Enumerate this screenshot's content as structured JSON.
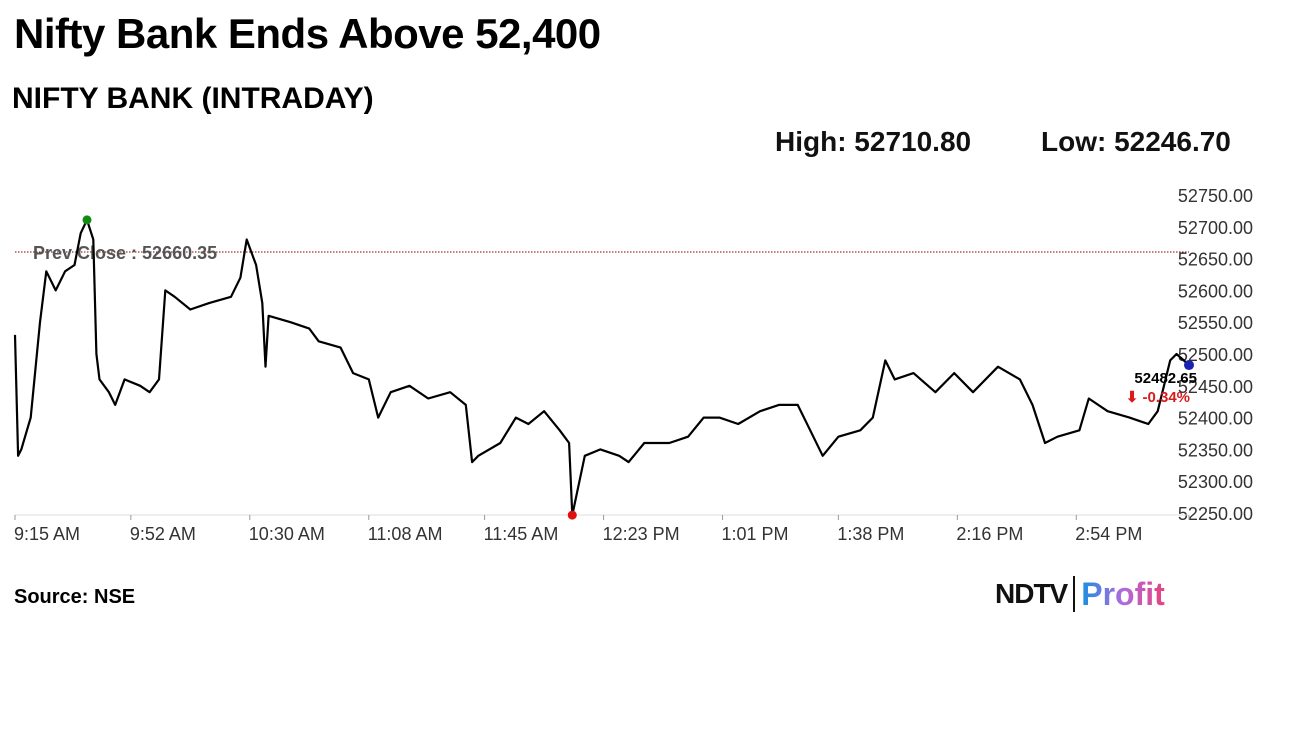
{
  "header": {
    "title": "Nifty Bank Ends Above 52,400",
    "subtitle": "NIFTY BANK (INTRADAY)",
    "high_label": "High: 52710.80",
    "low_label": "Low: 52246.70"
  },
  "footer": {
    "source": "Source: NSE",
    "logo_text": "NDTV | Profit"
  },
  "chart_data": {
    "type": "line",
    "title": "NIFTY BANK (INTRADAY)",
    "xlim": [
      "9:15",
      "15:30"
    ],
    "ylim": [
      52250,
      52750
    ],
    "y_ticks": [
      "52250.00",
      "52300.00",
      "52350.00",
      "52400.00",
      "52450.00",
      "52500.00",
      "52550.00",
      "52600.00",
      "52650.00",
      "52700.00",
      "52750.00"
    ],
    "x_ticks": [
      {
        "t": "9:15",
        "label": "9:15 AM"
      },
      {
        "t": "9:52",
        "label": "9:52 AM"
      },
      {
        "t": "10:30",
        "label": "10:30 AM"
      },
      {
        "t": "11:08",
        "label": "11:08 AM"
      },
      {
        "t": "11:45",
        "label": "11:45 AM"
      },
      {
        "t": "12:23",
        "label": "12:23 PM"
      },
      {
        "t": "13:01",
        "label": "1:01 PM"
      },
      {
        "t": "13:38",
        "label": "1:38 PM"
      },
      {
        "t": "14:16",
        "label": "2:16 PM"
      },
      {
        "t": "14:54",
        "label": "2:54 PM"
      }
    ],
    "prev_close": {
      "value": 52660.35,
      "label": "Prev Close : 52660.35",
      "color": "#8b0000"
    },
    "high": {
      "t": "9:38",
      "value": 52710.8,
      "color": "#138a13"
    },
    "low": {
      "t": "12:13",
      "value": 52246.7,
      "color": "#e01010"
    },
    "last": {
      "t": "15:30",
      "value": 52482.65,
      "label": "52482.65",
      "change": "⬇ -0.34%",
      "color": "#1a22b0",
      "change_color": "#d81b1b"
    },
    "series": [
      [
        "9:15",
        52530
      ],
      [
        "9:16",
        52340
      ],
      [
        "9:17",
        52350
      ],
      [
        "9:20",
        52400
      ],
      [
        "9:23",
        52550
      ],
      [
        "9:25",
        52630
      ],
      [
        "9:28",
        52600
      ],
      [
        "9:31",
        52630
      ],
      [
        "9:34",
        52640
      ],
      [
        "9:36",
        52690
      ],
      [
        "9:38",
        52710.8
      ],
      [
        "9:40",
        52680
      ],
      [
        "9:41",
        52500
      ],
      [
        "9:42",
        52460
      ],
      [
        "9:45",
        52440
      ],
      [
        "9:47",
        52420
      ],
      [
        "9:50",
        52460
      ],
      [
        "9:55",
        52450
      ],
      [
        "9:58",
        52440
      ],
      [
        "10:01",
        52460
      ],
      [
        "10:03",
        52600
      ],
      [
        "10:06",
        52590
      ],
      [
        "10:11",
        52570
      ],
      [
        "10:17",
        52580
      ],
      [
        "10:24",
        52590
      ],
      [
        "10:27",
        52620
      ],
      [
        "10:29",
        52680
      ],
      [
        "10:32",
        52640
      ],
      [
        "10:34",
        52580
      ],
      [
        "10:35",
        52480
      ],
      [
        "10:36",
        52560
      ],
      [
        "10:43",
        52550
      ],
      [
        "10:49",
        52540
      ],
      [
        "10:52",
        52520
      ],
      [
        "10:59",
        52510
      ],
      [
        "11:03",
        52470
      ],
      [
        "11:08",
        52460
      ],
      [
        "11:11",
        52400
      ],
      [
        "11:15",
        52440
      ],
      [
        "11:21",
        52450
      ],
      [
        "11:27",
        52430
      ],
      [
        "11:34",
        52440
      ],
      [
        "11:39",
        52420
      ],
      [
        "11:41",
        52330
      ],
      [
        "11:43",
        52340
      ],
      [
        "11:50",
        52360
      ],
      [
        "11:55",
        52400
      ],
      [
        "11:59",
        52390
      ],
      [
        "12:04",
        52410
      ],
      [
        "12:09",
        52380
      ],
      [
        "12:12",
        52360
      ],
      [
        "12:13",
        52246.7
      ],
      [
        "12:17",
        52340
      ],
      [
        "12:22",
        52350
      ],
      [
        "12:28",
        52340
      ],
      [
        "12:31",
        52330
      ],
      [
        "12:36",
        52360
      ],
      [
        "12:44",
        52360
      ],
      [
        "12:50",
        52370
      ],
      [
        "12:55",
        52400
      ],
      [
        "13:00",
        52400
      ],
      [
        "13:06",
        52390
      ],
      [
        "13:13",
        52410
      ],
      [
        "13:19",
        52420
      ],
      [
        "13:25",
        52420
      ],
      [
        "13:29",
        52380
      ],
      [
        "13:33",
        52340
      ],
      [
        "13:38",
        52370
      ],
      [
        "13:45",
        52380
      ],
      [
        "13:49",
        52400
      ],
      [
        "13:53",
        52490
      ],
      [
        "13:56",
        52460
      ],
      [
        "14:02",
        52470
      ],
      [
        "14:09",
        52440
      ],
      [
        "14:15",
        52470
      ],
      [
        "14:21",
        52440
      ],
      [
        "14:29",
        52480
      ],
      [
        "14:36",
        52460
      ],
      [
        "14:40",
        52420
      ],
      [
        "14:44",
        52360
      ],
      [
        "14:48",
        52370
      ],
      [
        "14:55",
        52380
      ],
      [
        "14:58",
        52430
      ],
      [
        "15:04",
        52410
      ],
      [
        "15:11",
        52400
      ],
      [
        "15:17",
        52390
      ],
      [
        "15:20",
        52410
      ],
      [
        "15:24",
        52490
      ],
      [
        "15:26",
        52500
      ],
      [
        "15:30",
        52482.65
      ]
    ]
  }
}
